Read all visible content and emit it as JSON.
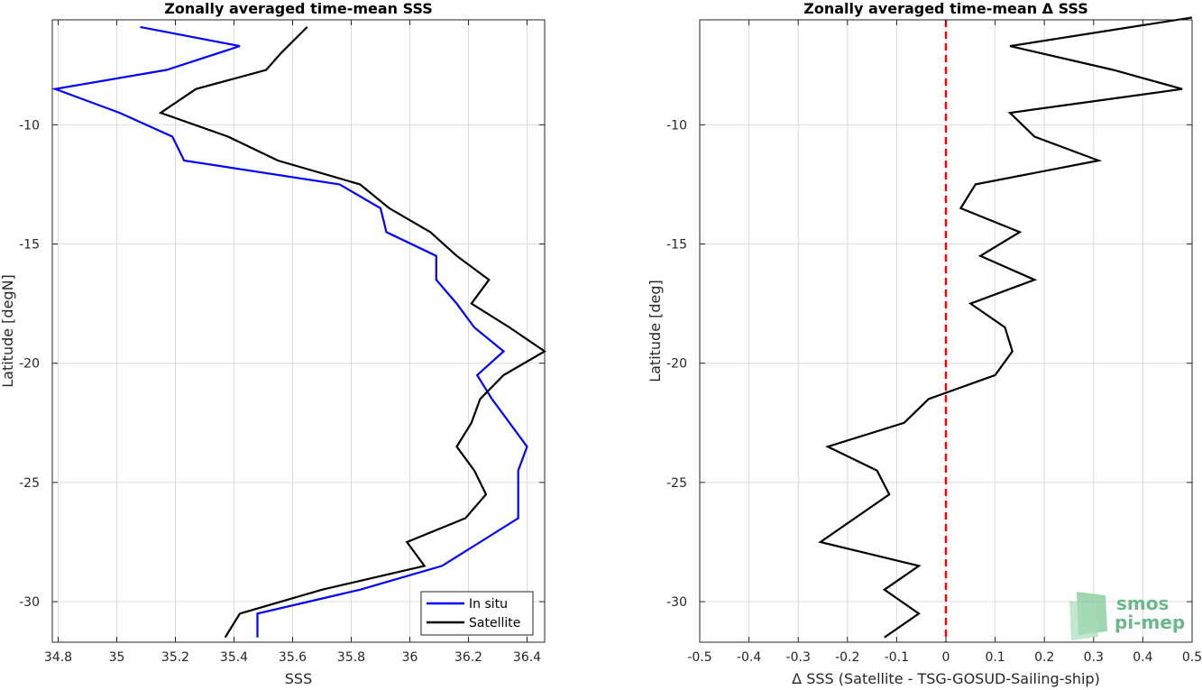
{
  "chart_data": [
    {
      "type": "line",
      "title": "Zonally averaged time-mean SSS",
      "xlabel": "SSS",
      "ylabel": "Latitude [degN]",
      "xlim": [
        34.78,
        36.46
      ],
      "ylim": [
        -31.7,
        -5.6
      ],
      "xticks": [
        34.8,
        35,
        35.2,
        35.4,
        35.6,
        35.8,
        36,
        36.2,
        36.4
      ],
      "yticks": [
        -30,
        -25,
        -20,
        -15,
        -10
      ],
      "grid": true,
      "legend": "bottom-right",
      "series": [
        {
          "name": "In situ",
          "color": "#0000ff",
          "x": [
            35.08,
            35.42,
            35.17,
            34.79,
            35.01,
            35.19,
            35.23,
            35.76,
            35.9,
            35.92,
            36.09,
            36.09,
            36.16,
            36.22,
            36.32,
            36.23,
            36.28,
            36.4,
            36.37,
            36.37,
            36.37,
            36.24,
            36.11,
            35.83,
            35.48,
            35.48
          ],
          "y": [
            -5.9,
            -6.7,
            -7.7,
            -8.5,
            -9.5,
            -10.5,
            -11.5,
            -12.5,
            -13.5,
            -14.5,
            -15.5,
            -16.5,
            -17.5,
            -18.5,
            -19.5,
            -20.5,
            -21.5,
            -23.5,
            -24.5,
            -25.5,
            -26.5,
            -27.5,
            -28.5,
            -29.5,
            -30.5,
            -31.5
          ]
        },
        {
          "name": "Satellite",
          "color": "#000000",
          "x": [
            35.65,
            35.56,
            35.51,
            35.27,
            35.15,
            35.38,
            35.55,
            35.83,
            35.93,
            36.07,
            36.16,
            36.27,
            36.21,
            36.34,
            36.46,
            36.32,
            36.24,
            36.21,
            36.16,
            36.22,
            36.26,
            36.19,
            35.99,
            36.05,
            35.7,
            35.42,
            35.37
          ],
          "y": [
            -5.9,
            -7.0,
            -7.7,
            -8.5,
            -9.5,
            -10.5,
            -11.5,
            -12.5,
            -13.5,
            -14.5,
            -15.5,
            -16.5,
            -17.5,
            -18.5,
            -19.5,
            -20.5,
            -21.5,
            -22.5,
            -23.5,
            -24.5,
            -25.5,
            -26.5,
            -27.5,
            -28.5,
            -29.5,
            -30.5,
            -31.5
          ]
        }
      ]
    },
    {
      "type": "line",
      "title": "Zonally averaged time-mean Δ SSS",
      "xlabel": "Δ SSS (Satellite - TSG-GOSUD-Sailing-ship)",
      "ylabel": "Latitude [deg]",
      "xlim": [
        -0.5,
        0.5
      ],
      "ylim": [
        -31.7,
        -5.6
      ],
      "xticks": [
        -0.5,
        -0.4,
        -0.3,
        -0.2,
        -0.1,
        0,
        0.1,
        0.2,
        0.3,
        0.4,
        0.5
      ],
      "xtick_labels": [
        "-0.5",
        "-0.4",
        "-0.3",
        "-0.2",
        "-0.1",
        "0",
        "0.1",
        "0.2",
        "0.3",
        "0.4",
        "0.5"
      ],
      "yticks": [
        -30,
        -25,
        -20,
        -15,
        -10
      ],
      "grid": true,
      "reference_line": {
        "x": 0,
        "color": "#ff0000",
        "style": "dashed"
      },
      "series": [
        {
          "color": "#000000",
          "x": [
            0.5,
            0.13,
            0.34,
            0.48,
            0.13,
            0.18,
            0.31,
            0.06,
            0.03,
            0.15,
            0.07,
            0.18,
            0.05,
            0.12,
            0.135,
            0.1,
            -0.035,
            -0.085,
            -0.24,
            -0.14,
            -0.115,
            -0.255,
            -0.055,
            -0.125,
            -0.055,
            -0.125
          ],
          "y": [
            -5.5,
            -6.7,
            -7.7,
            -8.5,
            -9.5,
            -10.5,
            -11.5,
            -12.5,
            -13.5,
            -14.5,
            -15.5,
            -16.5,
            -17.5,
            -18.5,
            -19.5,
            -20.5,
            -21.5,
            -22.5,
            -23.5,
            -24.5,
            -25.5,
            -27.5,
            -28.5,
            -29.5,
            -30.5,
            -31.5
          ]
        }
      ]
    }
  ],
  "legend": {
    "items": [
      {
        "label": "In situ",
        "color": "#0000ff"
      },
      {
        "label": "Satellite",
        "color": "#000000"
      }
    ]
  },
  "logo": {
    "line1": "smos",
    "line2": "pi-mep"
  }
}
